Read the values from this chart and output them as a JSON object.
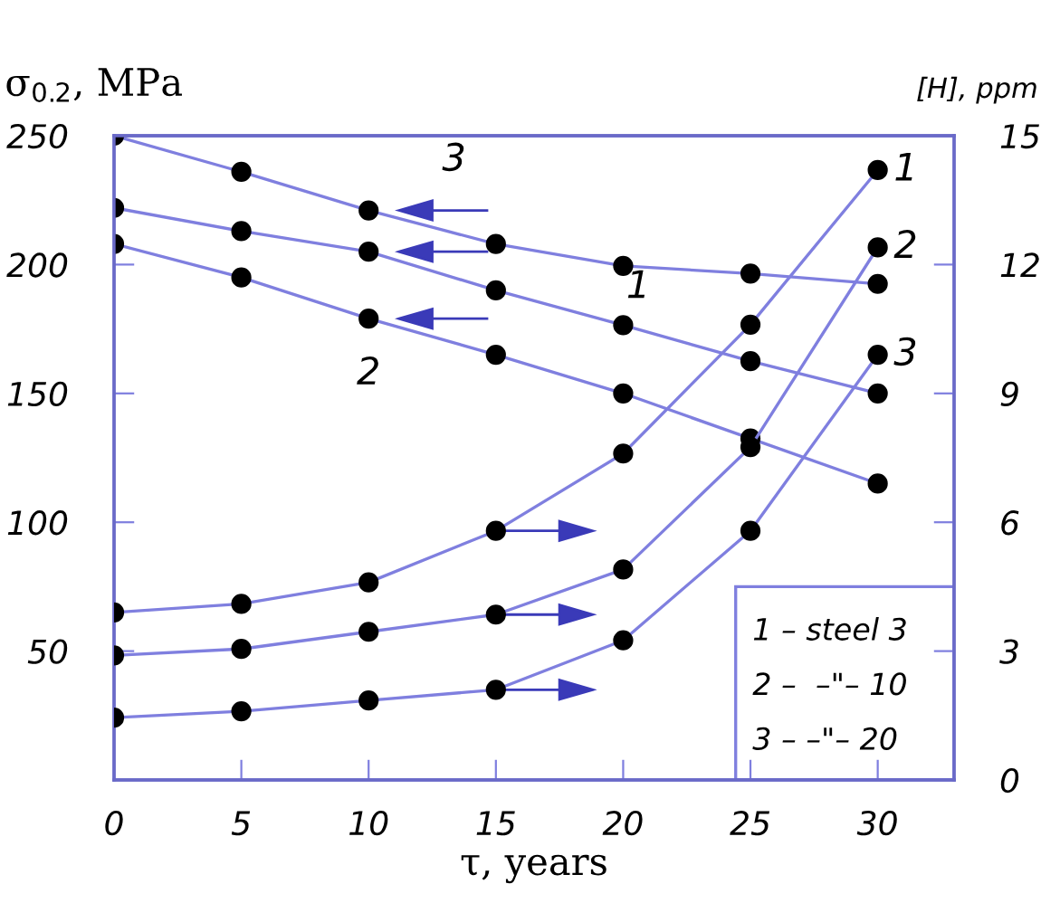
{
  "chart_data": {
    "type": "line",
    "ylabel": "σ$_{0.2}$, MPa",
    "y2label": "[H], ppm",
    "xlabel": "τ, years",
    "x": [
      0,
      5,
      10,
      15,
      20,
      25,
      30
    ],
    "xlim": [
      0,
      33
    ],
    "xticks": [
      0,
      5,
      10,
      15,
      20,
      25,
      30
    ],
    "ylim": [
      0,
      250
    ],
    "yticks": [
      50,
      100,
      150,
      200,
      250
    ],
    "y2lim": [
      0,
      15
    ],
    "y2ticks": [
      0,
      3,
      6,
      9,
      12,
      15
    ],
    "marker": "circle",
    "line_style": "solid",
    "grid": false,
    "series": [
      {
        "color": "#7f7fdf",
        "values": [
          222,
          213,
          205,
          190,
          176.5,
          162.5,
          150
        ]
      },
      {
        "color": "#7f7fdf",
        "values": [
          208,
          195,
          179,
          165,
          150,
          132.5,
          115
        ]
      },
      {
        "color": "#7f7fdf",
        "values": [
          250,
          236,
          221,
          208,
          199.5,
          196.5,
          192.5
        ]
      },
      {
        "color": "#7f7fdf",
        "axis": "y2",
        "values": [
          3.9,
          4.1,
          4.6,
          5.8,
          7.6,
          10.6,
          14.2
        ]
      },
      {
        "color": "#7f7fdf",
        "axis": "y2",
        "values": [
          2.9,
          3.05,
          3.45,
          3.85,
          4.9,
          7.75,
          12.4
        ]
      },
      {
        "color": "#7f7fdf",
        "axis": "y2",
        "values": [
          1.45,
          1.6,
          1.85,
          2.1,
          3.25,
          5.8,
          9.9
        ]
      }
    ],
    "annotations": [
      "1",
      "2",
      "3",
      "1",
      "2",
      "3",
      "1 – steel 3",
      "2 –  –\"– 10",
      "3 – –\"– 20"
    ]
  }
}
